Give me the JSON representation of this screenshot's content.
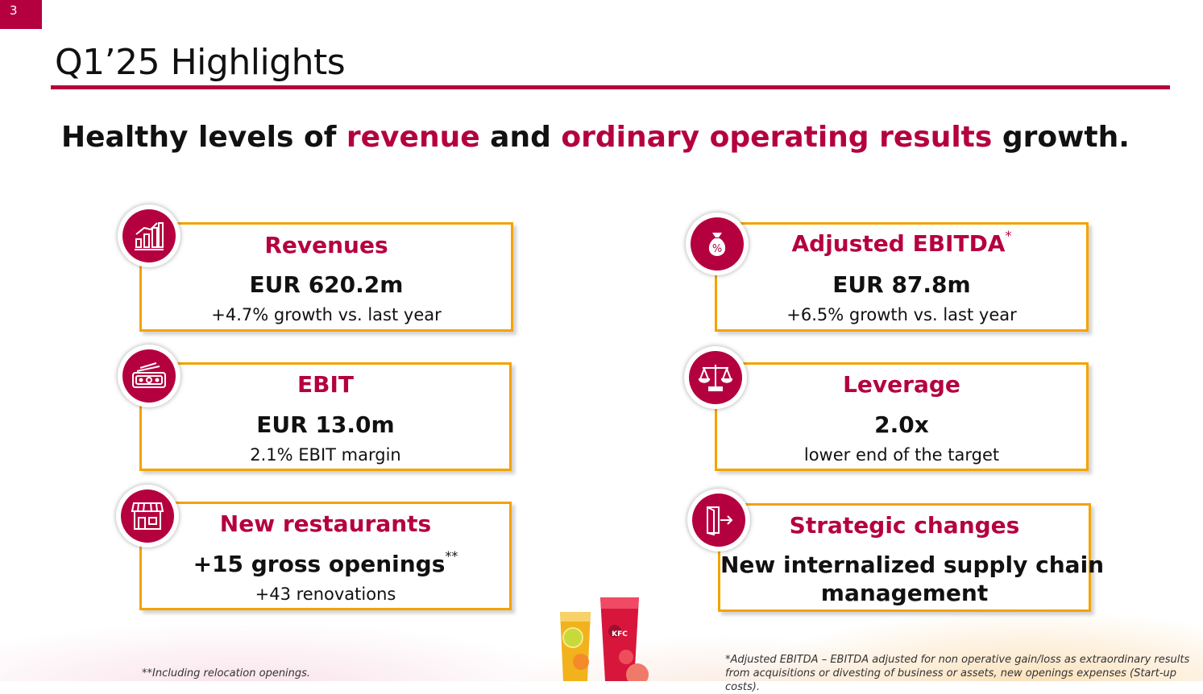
{
  "page_number": "3",
  "title": "Q1’25 Highlights",
  "headline": {
    "part1": "Healthy levels of ",
    "accent1": "revenue",
    "part2": " and ",
    "accent2": "ordinary operating results",
    "part3": " growth."
  },
  "cards": {
    "revenues": {
      "title": "Revenues",
      "value": "EUR 620.2m",
      "sub": "+4.7% growth vs. last year",
      "icon": "bar-chart-icon"
    },
    "ebitda": {
      "title": "Adjusted EBITDA",
      "title_mark": "*",
      "value": "EUR 87.8m",
      "sub": "+6.5% growth vs. last year",
      "icon": "money-bag-percent-icon"
    },
    "ebit": {
      "title": "EBIT",
      "value": "EUR 13.0m",
      "sub": "2.1% EBIT margin",
      "icon": "cash-icon"
    },
    "leverage": {
      "title": "Leverage",
      "value": "2.0x",
      "sub": "lower end of the target",
      "icon": "scales-icon"
    },
    "restaurants": {
      "title": "New restaurants",
      "value": "+15 gross openings",
      "value_mark": "**",
      "sub": "+43 renovations",
      "icon": "storefront-icon"
    },
    "strategic": {
      "title": "Strategic changes",
      "value_line1": "New internalized supply chain",
      "value_line2": "management",
      "icon": "exit-door-icon"
    }
  },
  "footnotes": {
    "left": "**Including relocation openings.",
    "right_line1": "*Adjusted EBITDA – EBITDA adjusted for non operative gain/loss as extraordinary results",
    "right_line2": "from acquisitions or divesting of business or assets, new openings expenses (Start-up costs)."
  },
  "decor": {
    "cup_label": "KFC"
  },
  "colors": {
    "accent": "#b5003f",
    "card_border": "#f4a300"
  }
}
